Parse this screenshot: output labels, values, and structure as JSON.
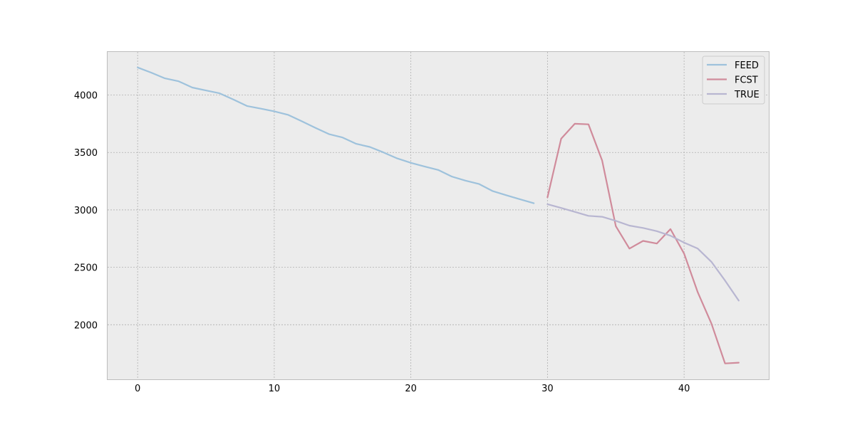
{
  "chart_data": {
    "type": "line",
    "title": "",
    "xlabel": "",
    "ylabel": "",
    "xlim": [
      -2.2,
      46.2
    ],
    "ylim": [
      1525,
      4375
    ],
    "xticks": [
      0,
      10,
      20,
      30,
      40
    ],
    "yticks": [
      2000,
      2500,
      3000,
      3500,
      4000
    ],
    "grid": true,
    "legend": "top-right",
    "background": "#ececec",
    "series": [
      {
        "name": "FEED",
        "color": "#9ec2dc",
        "x": [
          0,
          1,
          2,
          3,
          4,
          5,
          6,
          7,
          8,
          9,
          10,
          11,
          12,
          13,
          14,
          15,
          16,
          17,
          18,
          19,
          20,
          21,
          22,
          23,
          24,
          25,
          26,
          27,
          28,
          29
        ],
        "y": [
          4240,
          4195,
          4145,
          4120,
          4065,
          4040,
          4015,
          3962,
          3905,
          3882,
          3858,
          3828,
          3772,
          3715,
          3660,
          3630,
          3575,
          3548,
          3500,
          3448,
          3410,
          3378,
          3348,
          3290,
          3255,
          3225,
          3163,
          3127,
          3092,
          3058
        ]
      },
      {
        "name": "FCST",
        "color": "#d08b9b",
        "x": [
          30,
          31,
          32,
          33,
          34,
          35,
          36,
          37,
          38,
          39,
          40,
          41,
          42,
          43,
          44
        ],
        "y": [
          3110,
          3620,
          3750,
          3745,
          3430,
          2858,
          2663,
          2730,
          2707,
          2833,
          2620,
          2283,
          2010,
          1663,
          1670
        ]
      },
      {
        "name": "TRUE",
        "color": "#b8b6d1",
        "x": [
          30,
          31,
          32,
          33,
          34,
          35,
          36,
          37,
          38,
          39,
          40,
          41,
          42,
          43,
          44
        ],
        "y": [
          3050,
          3017,
          2983,
          2948,
          2940,
          2905,
          2863,
          2843,
          2815,
          2775,
          2715,
          2663,
          2548,
          2385,
          2210
        ]
      }
    ]
  }
}
